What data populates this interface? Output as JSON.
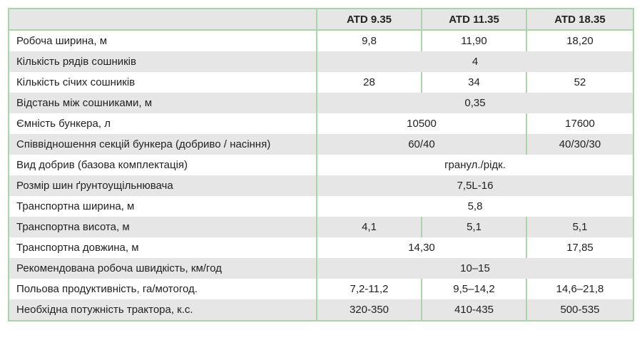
{
  "header": {
    "models": [
      "ATD 9.35",
      "ATD 11.35",
      "ATD 18.35"
    ]
  },
  "rows": [
    {
      "label": "Робоча ширина, м",
      "v1": "9,8",
      "v2": "11,90",
      "v3": "18,20"
    },
    {
      "label": "Кількість рядів сошників",
      "all": "4"
    },
    {
      "label": "Кількість січих сошників",
      "v1": "28",
      "v2": "34",
      "v3": "52"
    },
    {
      "label": "Відстань між сошниками, м",
      "all": "0,35"
    },
    {
      "label": "Ємність бункера, л",
      "v12": "10500",
      "v3": "17600"
    },
    {
      "label": "Співвідношення секцій бункера (добриво / насіння)",
      "v12": "60/40",
      "v3": "40/30/30"
    },
    {
      "label": "Вид добрив (базова комплектація)",
      "all": "гранул./рідк."
    },
    {
      "label": "Розмір шин ґрунтоущільнювача",
      "all": "7,5L-16"
    },
    {
      "label": "Транспортна ширина, м",
      "all": "5,8"
    },
    {
      "label": "Транспортна висота, м",
      "v1": "4,1",
      "v2": "5,1",
      "v3": "5,1"
    },
    {
      "label": "Транспортна довжина, м",
      "v12": "14,30",
      "v3": "17,85"
    },
    {
      "label": "Рекомендована робоча швидкість, км/год",
      "all": "10–15"
    },
    {
      "label": "Польова продуктивність, га/мотогод.",
      "v1": "7,2-11,2",
      "v2": "9,5–14,2",
      "v3": "14,6–21,8"
    },
    {
      "label": "Необхідна потужність трактора, к.с.",
      "v1": "320-350",
      "v2": "410-435",
      "v3": "500-535"
    }
  ],
  "colors": {
    "border": "#a9d5a9",
    "stripe": "#e6e6e6"
  }
}
